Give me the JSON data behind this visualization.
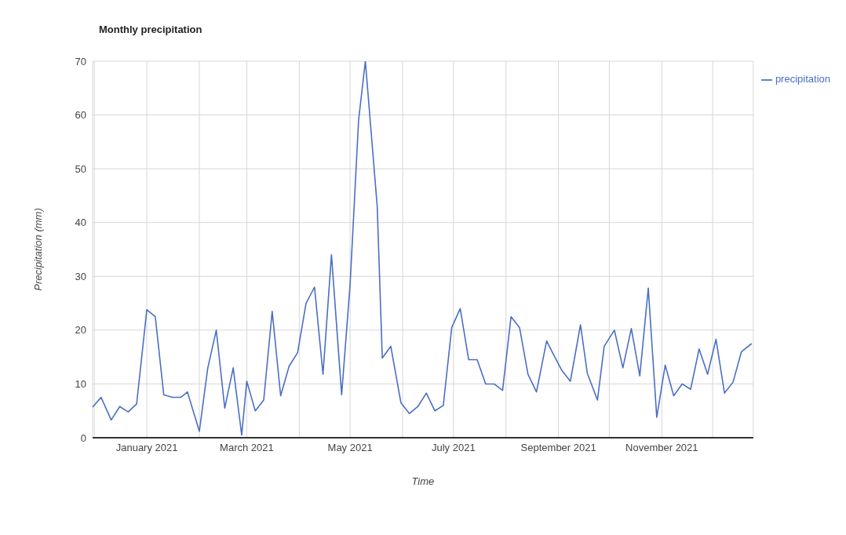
{
  "chart_data": {
    "type": "line",
    "title": "Monthly precipitation",
    "xlabel": "Time",
    "ylabel": "Precipitation (mm)",
    "x": [
      "2020-11-30",
      "2020-12-05",
      "2020-12-11",
      "2020-12-16",
      "2020-12-21",
      "2020-12-26",
      "2021-01-01",
      "2021-01-06",
      "2021-01-11",
      "2021-01-16",
      "2021-01-21",
      "2021-01-25",
      "2021-02-01",
      "2021-02-06",
      "2021-02-11",
      "2021-02-16",
      "2021-02-21",
      "2021-02-26",
      "2021-03-01",
      "2021-03-06",
      "2021-03-11",
      "2021-03-16",
      "2021-03-21",
      "2021-03-26",
      "2021-03-31",
      "2021-04-05",
      "2021-04-10",
      "2021-04-15",
      "2021-04-20",
      "2021-04-26",
      "2021-05-01",
      "2021-05-06",
      "2021-05-10",
      "2021-05-17",
      "2021-05-20",
      "2021-05-25",
      "2021-05-31",
      "2021-06-05",
      "2021-06-10",
      "2021-06-15",
      "2021-06-20",
      "2021-06-25",
      "2021-06-30",
      "2021-07-05",
      "2021-07-10",
      "2021-07-15",
      "2021-07-20",
      "2021-07-25",
      "2021-07-30",
      "2021-08-04",
      "2021-08-09",
      "2021-08-14",
      "2021-08-19",
      "2021-08-25",
      "2021-08-29",
      "2021-09-03",
      "2021-09-08",
      "2021-09-14",
      "2021-09-18",
      "2021-09-24",
      "2021-09-28",
      "2021-10-04",
      "2021-10-09",
      "2021-10-14",
      "2021-10-19",
      "2021-10-24",
      "2021-10-29",
      "2021-11-03",
      "2021-11-08",
      "2021-11-13",
      "2021-11-18",
      "2021-11-23",
      "2021-11-28",
      "2021-12-03",
      "2021-12-08",
      "2021-12-13",
      "2021-12-18",
      "2021-12-24"
    ],
    "series": [
      {
        "name": "precipitation",
        "color": "#4a6fc4",
        "values": [
          5.7,
          7.5,
          3.3,
          5.8,
          4.8,
          6.3,
          23.8,
          22.5,
          8,
          7.5,
          7.5,
          8.5,
          1.2,
          13,
          20,
          5.5,
          13,
          0.5,
          10.5,
          5,
          7,
          23.5,
          7.8,
          13.3,
          15.8,
          25,
          28,
          11.8,
          34,
          8,
          28.5,
          59,
          70,
          43,
          14.8,
          17,
          6.5,
          4.5,
          5.8,
          8.3,
          5,
          6,
          20.5,
          24,
          14.5,
          14.5,
          10,
          10,
          8.8,
          22.5,
          20.5,
          11.8,
          8.5,
          18,
          15.5,
          12.5,
          10.5,
          21,
          12,
          7,
          17,
          20,
          13,
          20.3,
          11.5,
          27.8,
          3.8,
          13.5,
          7.8,
          10,
          9,
          16.5,
          11.8,
          18.3,
          8.3,
          10.3,
          16,
          17.5
        ]
      }
    ],
    "xlim": [
      "2020-11-30",
      "2021-12-25"
    ],
    "xticks": [
      {
        "value": "2020-12-01",
        "label": null
      },
      {
        "value": "2021-01-01",
        "label": "January 2021"
      },
      {
        "value": "2021-02-01",
        "label": null
      },
      {
        "value": "2021-03-01",
        "label": "March 2021"
      },
      {
        "value": "2021-04-01",
        "label": null
      },
      {
        "value": "2021-05-01",
        "label": "May 2021"
      },
      {
        "value": "2021-06-01",
        "label": null
      },
      {
        "value": "2021-07-01",
        "label": "July 2021"
      },
      {
        "value": "2021-08-01",
        "label": null
      },
      {
        "value": "2021-09-01",
        "label": "September 2021"
      },
      {
        "value": "2021-10-01",
        "label": null
      },
      {
        "value": "2021-11-01",
        "label": "November 2021"
      },
      {
        "value": "2021-12-01",
        "label": null
      }
    ],
    "ylim": [
      0,
      70
    ],
    "yticks": [
      0,
      10,
      20,
      30,
      40,
      50,
      60,
      70
    ],
    "grid": true,
    "legend": "top right",
    "marker": "none",
    "line_style": "solid"
  }
}
